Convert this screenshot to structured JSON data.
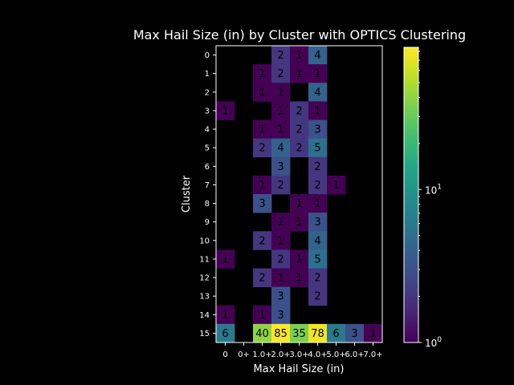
{
  "chart_data": {
    "type": "heatmap",
    "title": "Max Hail Size (in) by Cluster with OPTICS Clustering",
    "xlabel": "Max Hail Size (in)",
    "ylabel": "Cluster",
    "x_categories": [
      "0",
      "0+",
      "1.0+",
      "2.0+",
      "3.0+",
      "4.0+",
      "5.0+",
      "6.0+",
      "7.0+"
    ],
    "y_categories": [
      "0",
      "1",
      "2",
      "3",
      "4",
      "5",
      "6",
      "7",
      "8",
      "9",
      "10",
      "11",
      "12",
      "13",
      "14",
      "15"
    ],
    "values": [
      [
        null,
        null,
        null,
        2,
        1,
        4,
        null,
        null,
        null
      ],
      [
        null,
        null,
        1,
        2,
        1,
        1,
        null,
        null,
        null
      ],
      [
        null,
        null,
        1,
        1,
        null,
        4,
        null,
        null,
        null
      ],
      [
        1,
        null,
        null,
        1,
        2,
        1,
        null,
        null,
        null
      ],
      [
        null,
        null,
        1,
        1,
        2,
        3,
        null,
        null,
        null
      ],
      [
        null,
        null,
        2,
        4,
        2,
        5,
        null,
        null,
        null
      ],
      [
        null,
        null,
        null,
        3,
        null,
        2,
        null,
        null,
        null
      ],
      [
        null,
        null,
        1,
        2,
        null,
        2,
        1,
        null,
        null
      ],
      [
        null,
        null,
        3,
        null,
        1,
        1,
        null,
        null,
        null
      ],
      [
        null,
        null,
        null,
        1,
        1,
        3,
        null,
        null,
        null
      ],
      [
        null,
        null,
        2,
        1,
        null,
        4,
        null,
        null,
        null
      ],
      [
        1,
        null,
        null,
        2,
        1,
        5,
        null,
        null,
        null
      ],
      [
        null,
        null,
        2,
        1,
        1,
        2,
        null,
        null,
        null
      ],
      [
        null,
        null,
        null,
        3,
        null,
        2,
        null,
        null,
        null
      ],
      [
        1,
        null,
        1,
        3,
        null,
        null,
        null,
        null,
        null
      ],
      [
        6,
        null,
        40,
        85,
        35,
        78,
        6,
        3,
        1
      ]
    ],
    "colorbar": {
      "scale": "log",
      "min": 1,
      "max": 85,
      "colormap": "viridis",
      "tick_values": [
        1,
        10
      ],
      "tick_labels": [
        "10^0",
        "10^1"
      ]
    },
    "grid": false,
    "background": "#000000",
    "missing_color": "#000000"
  }
}
